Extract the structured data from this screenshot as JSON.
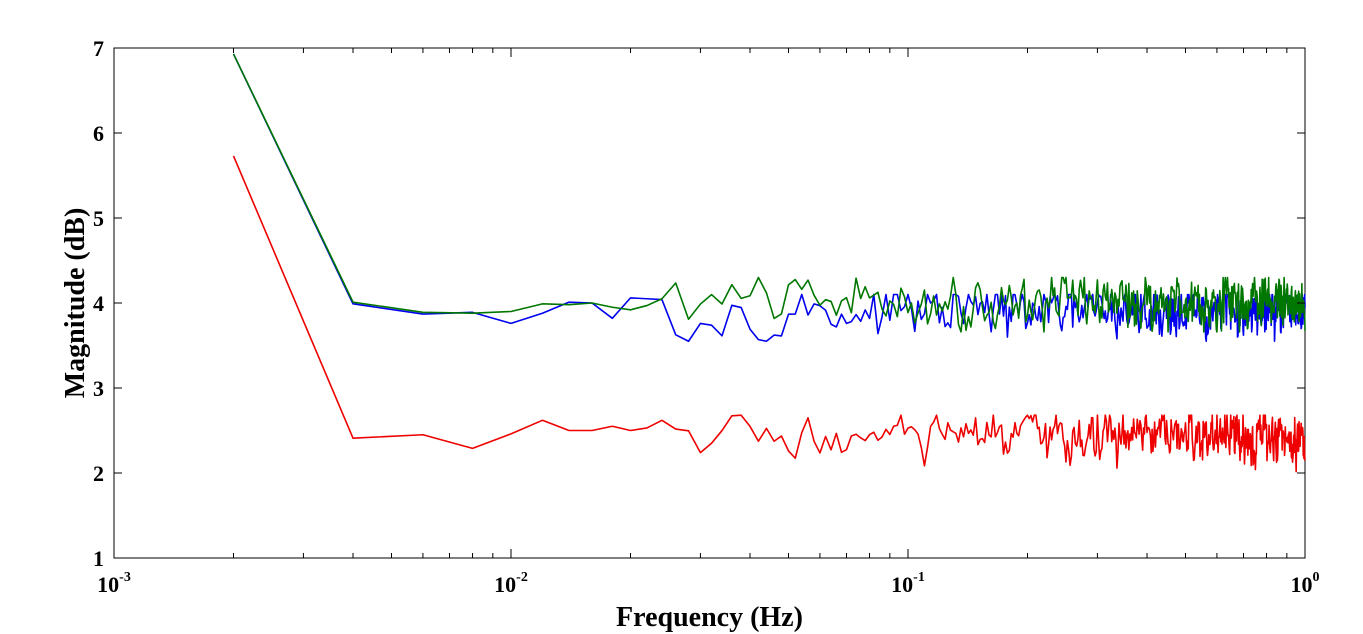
{
  "chart_data": {
    "type": "line",
    "title": "",
    "xlabel": "Frequency (Hz)",
    "ylabel": "Magnitude (dB)",
    "xscale": "log",
    "xlim": [
      0.001,
      1
    ],
    "ylim": [
      1,
      7
    ],
    "x_ticks": [
      {
        "base": "10",
        "exp": "-3",
        "value": 0.001
      },
      {
        "base": "10",
        "exp": "-2",
        "value": 0.01
      },
      {
        "base": "10",
        "exp": "-1",
        "value": 0.1
      },
      {
        "base": "10",
        "exp": "0",
        "value": 1
      }
    ],
    "y_ticks": [
      "1",
      "2",
      "3",
      "4",
      "5",
      "6",
      "7"
    ],
    "grid": false,
    "legend": "none",
    "frequency_step_hz": 0.002,
    "series": [
      {
        "name": "blue",
        "color": "#0000ee",
        "start_values": [
          6.93,
          3.99,
          3.87,
          3.89,
          3.76,
          3.88,
          4.01,
          4.0,
          3.82,
          4.06,
          4.05,
          4.04
        ],
        "base_level": 3.9,
        "noise_amplitude": 0.15,
        "min_value": 3.55,
        "max_value": 4.1
      },
      {
        "name": "green",
        "color": "#007700",
        "start_values": [
          6.93,
          4.01,
          3.89,
          3.88,
          3.9,
          3.99,
          3.98,
          4.0,
          3.95,
          3.92,
          3.97,
          4.05
        ],
        "base_level": 4.02,
        "noise_amplitude": 0.15,
        "min_value": 3.66,
        "max_value": 4.3
      },
      {
        "name": "red",
        "color": "#ee0000",
        "start_values": [
          5.73,
          2.41,
          2.45,
          2.29,
          2.46,
          2.62,
          2.5,
          2.5,
          2.55,
          2.5,
          2.53,
          2.62
        ],
        "base_level": 2.42,
        "noise_amplitude": 0.14,
        "min_value": 1.97,
        "max_value": 2.68
      }
    ]
  }
}
